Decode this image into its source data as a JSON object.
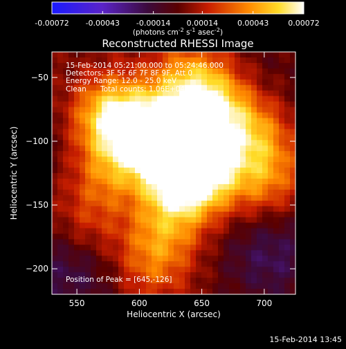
{
  "chart_data": {
    "type": "heatmap",
    "title": "Reconstructed RHESSI Image",
    "xlabel": "Heliocentric X (arcsec)",
    "ylabel": "Heliocentric Y (arcsec)",
    "xlim": [
      530,
      725
    ],
    "ylim": [
      -220,
      -30
    ],
    "xticks": [
      550,
      600,
      650,
      700
    ],
    "yticks": [
      -50,
      -100,
      -150,
      -200
    ],
    "colorbar": {
      "ticks": [
        "-0.00072",
        "-0.00043",
        "-0.00014",
        "0.00014",
        "0.00043",
        "0.00072"
      ],
      "range": [
        -0.00072,
        0.00072
      ],
      "unit_prefix": "(photons cm",
      "unit_sup1": "-2",
      "unit_mid": " s",
      "unit_sup2": "-1",
      "unit_mid2": " asec",
      "unit_sup3": "-2",
      "unit_suffix": ")",
      "colormap": "blue-purple-red-orange-yellow-white"
    },
    "annotations": {
      "time": "15-Feb-2014 05:21:00.000 to 05:24:46.000",
      "detectors": "Detectors: 3F 5F 6F 7F 8F 9F, Att 0",
      "energy": "Energy Range: 12.0 - 25.0 keV",
      "clean": "Clean",
      "counts": "Total counts: 1.06E+04",
      "peak": "Position of Peak = [645,-126]"
    },
    "peak": {
      "x": 645,
      "y": -126
    },
    "bright_sources": [
      {
        "x": 578,
        "y": -82,
        "intensity": 0.9
      },
      {
        "x": 645,
        "y": -126,
        "intensity": 1.0
      },
      {
        "x": 628,
        "y": -110,
        "intensity": 0.75
      },
      {
        "x": 612,
        "y": -95,
        "intensity": 0.7
      },
      {
        "x": 660,
        "y": -75,
        "intensity": 0.6
      },
      {
        "x": 640,
        "y": -55,
        "intensity": 0.55
      },
      {
        "x": 690,
        "y": -95,
        "intensity": 0.5
      },
      {
        "x": 700,
        "y": -130,
        "intensity": 0.45
      },
      {
        "x": 620,
        "y": -160,
        "intensity": 0.5
      },
      {
        "x": 610,
        "y": -195,
        "intensity": 0.4
      },
      {
        "x": 575,
        "y": -125,
        "intensity": 0.55
      },
      {
        "x": 560,
        "y": -165,
        "intensity": 0.35
      }
    ],
    "dark_regions": [
      {
        "x": 545,
        "y": -200,
        "intensity": -0.35
      },
      {
        "x": 705,
        "y": -190,
        "intensity": -0.35
      },
      {
        "x": 590,
        "y": -145,
        "intensity": -0.2
      },
      {
        "x": 555,
        "y": -105,
        "intensity": -0.15
      },
      {
        "x": 705,
        "y": -50,
        "intensity": -0.1
      }
    ]
  },
  "footer": {
    "timestamp": "15-Feb-2014 13:45"
  }
}
